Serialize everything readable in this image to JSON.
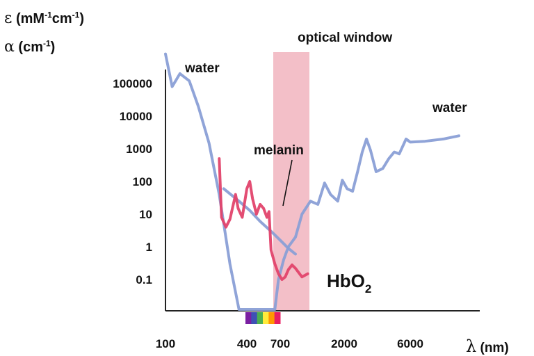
{
  "chart_data": {
    "type": "line",
    "title": "",
    "ylabel_lines": [
      {
        "symbol": "ε",
        "text": "(mM",
        "sup1": "-1",
        "text2": "cm",
        "sup2": "-1",
        "text3": ")"
      },
      {
        "symbol": "α",
        "text": "(cm",
        "sup1": "-1",
        "text2": ")",
        "sup2": "",
        "text3": ""
      }
    ],
    "xlabel": {
      "symbol": "λ",
      "text": "(nm)"
    },
    "y_scale": "log",
    "ylim": [
      0.01,
      1000000
    ],
    "y_ticks": [
      100000,
      10000,
      1000,
      100,
      10,
      1,
      0.1
    ],
    "y_tick_labels": [
      "100000",
      "10000",
      "1000",
      "100",
      "10",
      "1",
      "0.1"
    ],
    "x_tick_labels": [
      "100",
      "400",
      "700",
      "2000",
      "6000"
    ],
    "grid": false,
    "region": {
      "label": "optical window",
      "color": "#f2b8c2"
    },
    "spectrum_bar": [
      "#7a1fa2",
      "#3f51b5",
      "#4caf50",
      "#ffeb3b",
      "#ff9800",
      "#e91e63"
    ],
    "series": [
      {
        "name": "water",
        "color": "#8a9fd6",
        "points": [
          [
            100,
            800000
          ],
          [
            112,
            80000
          ],
          [
            128,
            200000
          ],
          [
            150,
            120000
          ],
          [
            175,
            20000
          ],
          [
            210,
            1500
          ],
          [
            250,
            40
          ],
          [
            300,
            0.3
          ],
          [
            350,
            0.008
          ],
          [
            640,
            0.01
          ],
          [
            680,
            0.1
          ],
          [
            740,
            0.4
          ],
          [
            800,
            1
          ],
          [
            900,
            2
          ],
          [
            1000,
            10
          ],
          [
            1150,
            25
          ],
          [
            1300,
            20
          ],
          [
            1450,
            90
          ],
          [
            1600,
            40
          ],
          [
            1800,
            25
          ],
          [
            1940,
            110
          ],
          [
            2100,
            60
          ],
          [
            2300,
            50
          ],
          [
            2500,
            200
          ],
          [
            2700,
            800
          ],
          [
            2900,
            2000
          ],
          [
            3100,
            900
          ],
          [
            3400,
            200
          ],
          [
            3800,
            250
          ],
          [
            4200,
            500
          ],
          [
            4600,
            800
          ],
          [
            5000,
            700
          ],
          [
            5600,
            2000
          ],
          [
            6000,
            1600
          ],
          [
            7000,
            1700
          ],
          [
            8500,
            2000
          ],
          [
            10000,
            2500
          ]
        ]
      },
      {
        "name": "water",
        "color": "#8a9fd6",
        "points": []
      },
      {
        "name": "melanin",
        "color": "#8a9fd6",
        "points": [
          [
            270,
            60
          ],
          [
            350,
            25
          ],
          [
            420,
            13
          ],
          [
            500,
            6
          ],
          [
            600,
            3
          ],
          [
            700,
            1.6
          ],
          [
            800,
            0.9
          ],
          [
            900,
            0.6
          ]
        ]
      },
      {
        "name": "HbO2",
        "color": "#e2436b",
        "points": [
          [
            250,
            500
          ],
          [
            260,
            8
          ],
          [
            280,
            4
          ],
          [
            300,
            7
          ],
          [
            330,
            40
          ],
          [
            345,
            15
          ],
          [
            370,
            8
          ],
          [
            400,
            60
          ],
          [
            420,
            100
          ],
          [
            440,
            30
          ],
          [
            470,
            10
          ],
          [
            500,
            20
          ],
          [
            530,
            15
          ],
          [
            560,
            8
          ],
          [
            580,
            12
          ],
          [
            600,
            0.8
          ],
          [
            640,
            0.3
          ],
          [
            680,
            0.15
          ],
          [
            720,
            0.1
          ],
          [
            760,
            0.12
          ],
          [
            800,
            0.2
          ],
          [
            850,
            0.28
          ],
          [
            900,
            0.22
          ],
          [
            1000,
            0.12
          ],
          [
            1100,
            0.15
          ]
        ]
      }
    ],
    "labels": {
      "water_top": "water",
      "water_right": "water",
      "melanin": "melanin",
      "hbo2": "HbO",
      "hbo2_sub": "2"
    }
  }
}
